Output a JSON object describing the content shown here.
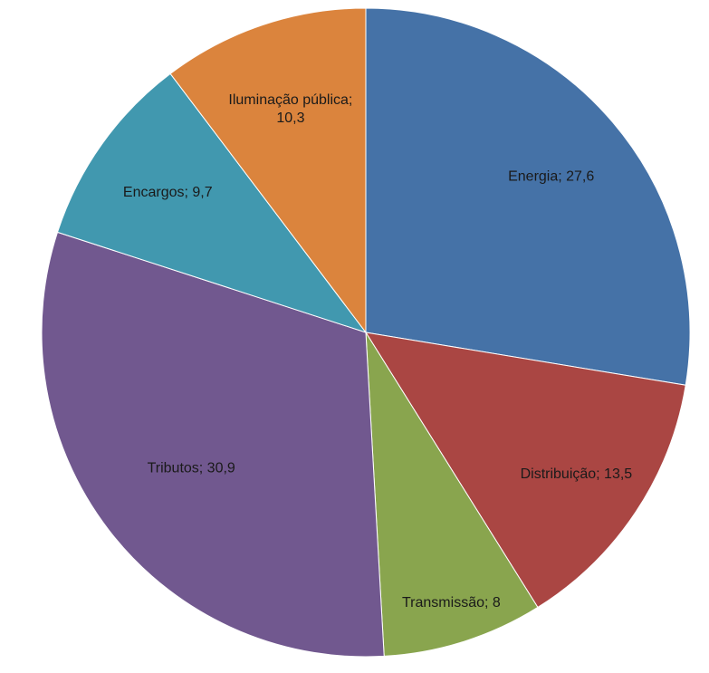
{
  "chart_data": {
    "type": "pie",
    "title": "",
    "series": [
      {
        "values": [
          27.6,
          13.5,
          8,
          30.9,
          9.7,
          10.3
        ]
      }
    ],
    "categories": [
      "Energia",
      "Distribuição",
      "Transmissão",
      "Tributos",
      "Encargos",
      "Iluminação pública"
    ],
    "values": [
      27.6,
      13.5,
      8,
      30.9,
      9.7,
      10.3
    ],
    "labels": [
      [
        "Energia; 27,6"
      ],
      [
        "Distribuição; 13,5"
      ],
      [
        "Transmissão; 8"
      ],
      [
        "Tributos; 30,9"
      ],
      [
        "Encargos; 9,7"
      ],
      [
        "Iluminação pública;",
        "10,3"
      ]
    ],
    "colors": [
      "#4572a7",
      "#aa4643",
      "#89a54e",
      "#71588f",
      "#4198af",
      "#db843d"
    ],
    "start_angle": "top",
    "direction": "clockwise",
    "legend": "none"
  }
}
